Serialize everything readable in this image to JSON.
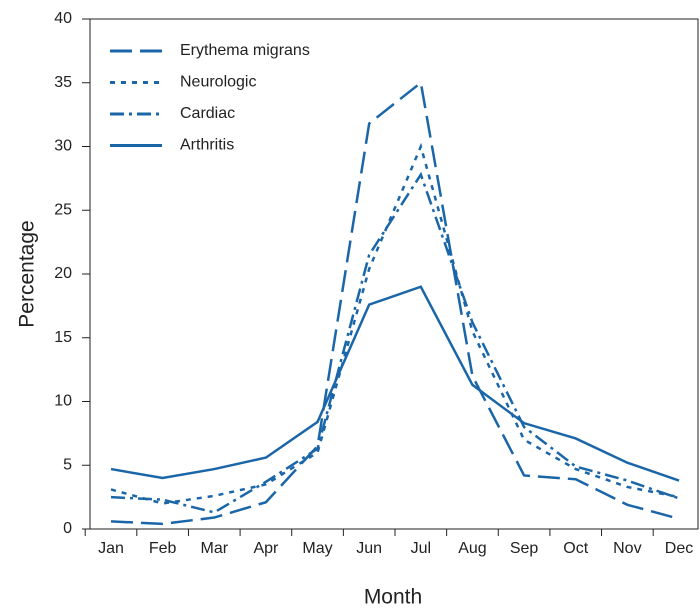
{
  "chart_data": {
    "type": "line",
    "xlabel": "Month",
    "ylabel": "Percentage",
    "categories": [
      "Jan",
      "Feb",
      "Mar",
      "Apr",
      "May",
      "Jun",
      "Jul",
      "Aug",
      "Sep",
      "Oct",
      "Nov",
      "Dec"
    ],
    "series": [
      {
        "name": "Erythema migrans",
        "color": "#1a66a8",
        "line_style": "long-dash",
        "values": [
          0.6,
          0.4,
          0.9,
          2.1,
          6.5,
          31.8,
          35,
          12,
          4.2,
          3.9,
          1.9,
          0.8
        ]
      },
      {
        "name": "Neurologic",
        "color": "#1a66a8",
        "line_style": "dotted",
        "values": [
          3.1,
          2.0,
          2.6,
          3.5,
          6.0,
          20.4,
          30,
          15.5,
          7.0,
          4.7,
          3.3,
          2.5
        ]
      },
      {
        "name": "Cardiac",
        "color": "#1a66a8",
        "line_style": "dash-dot",
        "values": [
          2.5,
          2.3,
          1.3,
          3.7,
          6.3,
          21.5,
          27.8,
          16.2,
          8.0,
          4.9,
          3.8,
          2.4
        ]
      },
      {
        "name": "Arthritis",
        "color": "#1a66a8",
        "line_style": "solid",
        "values": [
          4.7,
          4.0,
          4.7,
          5.6,
          8.4,
          17.6,
          19.0,
          11.3,
          8.3,
          7.1,
          5.2,
          3.8
        ]
      }
    ],
    "ylim": [
      0,
      40
    ],
    "yticks": [
      0,
      5,
      10,
      15,
      20,
      25,
      30,
      35,
      40
    ],
    "legend": "upper-left",
    "grid": false
  }
}
